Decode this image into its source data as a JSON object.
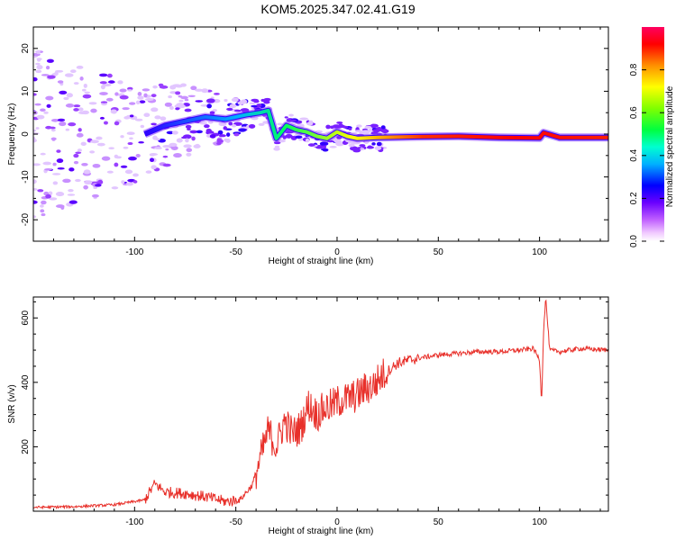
{
  "title": "KOM5.2025.347.02.41.G19",
  "chart_data": [
    {
      "type": "heatmap",
      "xlabel": "Height of straight line (km)",
      "ylabel": "Frequency (Hz)",
      "xlim": [
        -150,
        134
      ],
      "ylim": [
        -25,
        25
      ],
      "xticks": [
        -100,
        -50,
        0,
        50,
        100
      ],
      "yticks": [
        -20,
        -10,
        0,
        10,
        20
      ],
      "ridge": {
        "x": [
          -95,
          -85,
          -75,
          -65,
          -55,
          -45,
          -38,
          -34,
          -30,
          -25,
          -20,
          -15,
          -10,
          -5,
          0,
          5,
          10,
          20,
          40,
          60,
          80,
          100,
          102,
          110,
          134
        ],
        "y": [
          0,
          2,
          3,
          4,
          3.5,
          4.5,
          5,
          5.5,
          -1,
          2,
          1,
          0.5,
          -0.5,
          -1,
          0.5,
          -0.5,
          -1,
          -0.8,
          -0.6,
          -0.5,
          -0.8,
          -0.9,
          0.3,
          -0.8,
          -0.8
        ]
      },
      "colorbar": {
        "label": "Normalized spectral amplitude",
        "range": [
          0,
          1
        ],
        "ticks": [
          "0.0",
          "0.2",
          "0.4",
          "0.6",
          "0.8"
        ]
      }
    },
    {
      "type": "line",
      "xlabel": "Height of straight line (km)",
      "ylabel": "SNR (v/v)",
      "xlim": [
        -150,
        134
      ],
      "ylim": [
        0,
        665
      ],
      "xticks": [
        -100,
        -50,
        0,
        50,
        100
      ],
      "yticks": [
        200,
        400,
        600
      ],
      "color": "#e8302a",
      "series": [
        {
          "name": "SNR",
          "x": [
            -150,
            -130,
            -110,
            -95,
            -90,
            -85,
            -75,
            -65,
            -55,
            -48,
            -42,
            -38,
            -34,
            -30,
            -26,
            -22,
            -18,
            -14,
            -10,
            -6,
            -2,
            2,
            6,
            10,
            14,
            18,
            22,
            26,
            30,
            40,
            50,
            60,
            70,
            80,
            90,
            97,
            100,
            101,
            102,
            103,
            105,
            110,
            120,
            134
          ],
          "y": [
            12,
            14,
            20,
            35,
            85,
            60,
            55,
            45,
            30,
            35,
            80,
            160,
            250,
            200,
            280,
            240,
            260,
            330,
            300,
            320,
            330,
            345,
            350,
            360,
            380,
            390,
            420,
            440,
            460,
            475,
            485,
            490,
            495,
            495,
            500,
            505,
            470,
            340,
            560,
            665,
            500,
            495,
            505,
            500
          ]
        }
      ]
    }
  ]
}
